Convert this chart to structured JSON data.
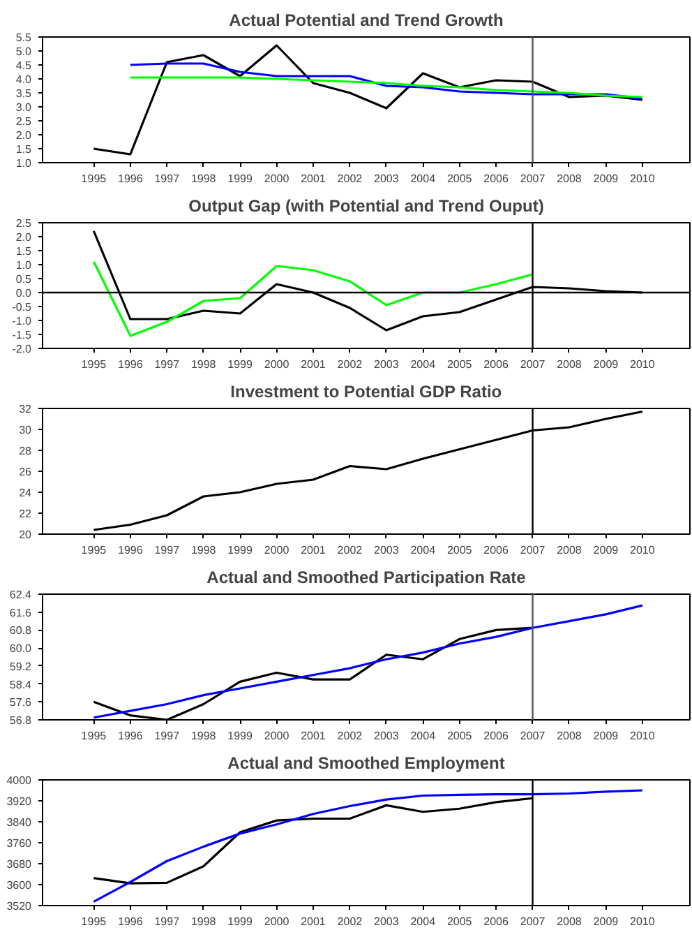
{
  "chart_data": [
    {
      "type": "line",
      "title": "Actual Potential and Trend Growth",
      "categories": [
        "1995",
        "1996",
        "1997",
        "1998",
        "1999",
        "2000",
        "2001",
        "2002",
        "2003",
        "2004",
        "2005",
        "2006",
        "2007",
        "2008",
        "2009",
        "2010"
      ],
      "series": [
        {
          "color": "#000000",
          "values": [
            1.5,
            1.3,
            4.6,
            4.85,
            4.1,
            5.2,
            3.85,
            3.5,
            2.95,
            4.2,
            3.7,
            3.95,
            3.9,
            3.35,
            3.4,
            3.25
          ]
        },
        {
          "color": "#0000ff",
          "values": [
            null,
            4.5,
            4.55,
            4.55,
            4.25,
            4.1,
            4.1,
            4.1,
            3.75,
            3.7,
            3.55,
            3.5,
            3.45,
            3.45,
            3.45,
            3.3
          ]
        },
        {
          "color": "#00ff00",
          "values": [
            null,
            4.05,
            4.05,
            4.05,
            4.05,
            4.0,
            3.95,
            3.9,
            3.85,
            3.75,
            3.7,
            3.6,
            3.55,
            3.5,
            3.4,
            3.35
          ]
        }
      ],
      "ylim": [
        1.0,
        5.5
      ],
      "yticks": [
        {
          "value": 1,
          "label": "1.0"
        },
        {
          "value": 1.5,
          "label": "1.5"
        },
        {
          "value": 2,
          "label": "2.0"
        },
        {
          "value": 2.5,
          "label": "2.5"
        },
        {
          "value": 3,
          "label": "3.0"
        },
        {
          "value": 3.5,
          "label": "3.5"
        },
        {
          "value": 4,
          "label": "4.0"
        },
        {
          "value": 4.5,
          "label": "4.5"
        },
        {
          "value": 5,
          "label": "5.0"
        },
        {
          "value": 5.5,
          "label": "5.5"
        }
      ],
      "ref_lines": [
        {
          "axis": "x",
          "value": "2007",
          "color": "#555555"
        }
      ],
      "grid": false
    },
    {
      "type": "line",
      "title": "Output Gap (with Potential and Trend Ouput)",
      "categories": [
        "1995",
        "1996",
        "1997",
        "1998",
        "1999",
        "2000",
        "2001",
        "2002",
        "2003",
        "2004",
        "2005",
        "2006",
        "2007",
        "2008",
        "2009",
        "2010"
      ],
      "series": [
        {
          "color": "#000000",
          "values": [
            2.2,
            -0.95,
            -0.95,
            -0.65,
            -0.75,
            0.3,
            0.0,
            -0.55,
            -1.35,
            -0.85,
            -0.7,
            -0.25,
            0.2,
            0.15,
            0.05,
            0.0
          ]
        },
        {
          "color": "#00ff00",
          "values": [
            1.1,
            -1.55,
            -1.05,
            -0.3,
            -0.2,
            0.95,
            0.8,
            0.4,
            -0.45,
            0.0,
            0.0,
            0.3,
            0.65,
            null,
            null,
            null
          ]
        }
      ],
      "ylim": [
        -2.0,
        2.5
      ],
      "yticks": [
        {
          "value": -2,
          "label": "-2.0"
        },
        {
          "value": -1.5,
          "label": "-1.5"
        },
        {
          "value": -1,
          "label": "-1.0"
        },
        {
          "value": -0.5,
          "label": "-0.5"
        },
        {
          "value": 0,
          "label": "0.0"
        },
        {
          "value": 0.5,
          "label": "0.5"
        },
        {
          "value": 1,
          "label": "1.0"
        },
        {
          "value": 1.5,
          "label": "1.5"
        },
        {
          "value": 2,
          "label": "2.0"
        },
        {
          "value": 2.5,
          "label": "2.5"
        }
      ],
      "ref_lines": [
        {
          "axis": "x",
          "value": "2007",
          "color": "#000000"
        },
        {
          "axis": "y",
          "value": 0,
          "color": "#000000"
        }
      ],
      "grid": false
    },
    {
      "type": "line",
      "title": "Investment to Potential GDP Ratio",
      "categories": [
        "1995",
        "1996",
        "1997",
        "1998",
        "1999",
        "2000",
        "2001",
        "2002",
        "2003",
        "2004",
        "2005",
        "2006",
        "2007",
        "2008",
        "2009",
        "2010"
      ],
      "series": [
        {
          "color": "#000000",
          "values": [
            20.4,
            20.9,
            21.8,
            23.6,
            24.0,
            24.8,
            25.2,
            26.5,
            26.2,
            27.2,
            28.1,
            29.0,
            29.9,
            30.2,
            31.0,
            31.7
          ]
        }
      ],
      "ylim": [
        20,
        32
      ],
      "yticks": [
        20,
        22,
        24,
        26,
        28,
        30,
        32
      ],
      "ref_lines": [
        {
          "axis": "x",
          "value": "2007",
          "color": "#000000"
        }
      ],
      "grid": false
    },
    {
      "type": "line",
      "title": "Actual and Smoothed Participation Rate",
      "categories": [
        "1995",
        "1996",
        "1997",
        "1998",
        "1999",
        "2000",
        "2001",
        "2002",
        "2003",
        "2004",
        "2005",
        "2006",
        "2007",
        "2008",
        "2009",
        "2010"
      ],
      "series": [
        {
          "color": "#000000",
          "values": [
            57.6,
            57.0,
            56.8,
            57.5,
            58.5,
            58.9,
            58.6,
            58.6,
            59.7,
            59.5,
            60.4,
            60.8,
            60.9,
            null,
            null,
            null
          ]
        },
        {
          "color": "#0000ff",
          "values": [
            56.9,
            57.2,
            57.5,
            57.9,
            58.2,
            58.5,
            58.8,
            59.1,
            59.5,
            59.8,
            60.2,
            60.5,
            60.9,
            61.2,
            61.5,
            61.9
          ]
        }
      ],
      "ylim": [
        56.8,
        62.4
      ],
      "yticks": [
        56.8,
        57.6,
        58.4,
        59.2,
        {
          "value": 60,
          "label": "60.0"
        },
        60.8,
        61.6,
        62.4
      ],
      "ref_lines": [
        {
          "axis": "x",
          "value": "2007",
          "color": "#555555"
        }
      ],
      "grid": false
    },
    {
      "type": "line",
      "title": "Actual and Smoothed Employment",
      "categories": [
        "1995",
        "1996",
        "1997",
        "1998",
        "1999",
        "2000",
        "2001",
        "2002",
        "2003",
        "2004",
        "2005",
        "2006",
        "2007",
        "2008",
        "2009",
        "2010"
      ],
      "series": [
        {
          "color": "#000000",
          "values": [
            3625,
            3605,
            3607,
            3670,
            3800,
            3845,
            3852,
            3852,
            3903,
            3878,
            3890,
            3915,
            3930,
            null,
            null,
            null
          ]
        },
        {
          "color": "#0000ff",
          "values": [
            3535,
            3610,
            3690,
            3745,
            3795,
            3830,
            3870,
            3900,
            3925,
            3940,
            3943,
            3945,
            3945,
            3948,
            3955,
            3960
          ]
        }
      ],
      "ylim": [
        3520,
        4000
      ],
      "yticks": [
        3520,
        3600,
        3680,
        3760,
        3840,
        3920,
        4000
      ],
      "ref_lines": [
        {
          "axis": "x",
          "value": "2007",
          "color": "#000000"
        }
      ],
      "grid": false
    }
  ]
}
